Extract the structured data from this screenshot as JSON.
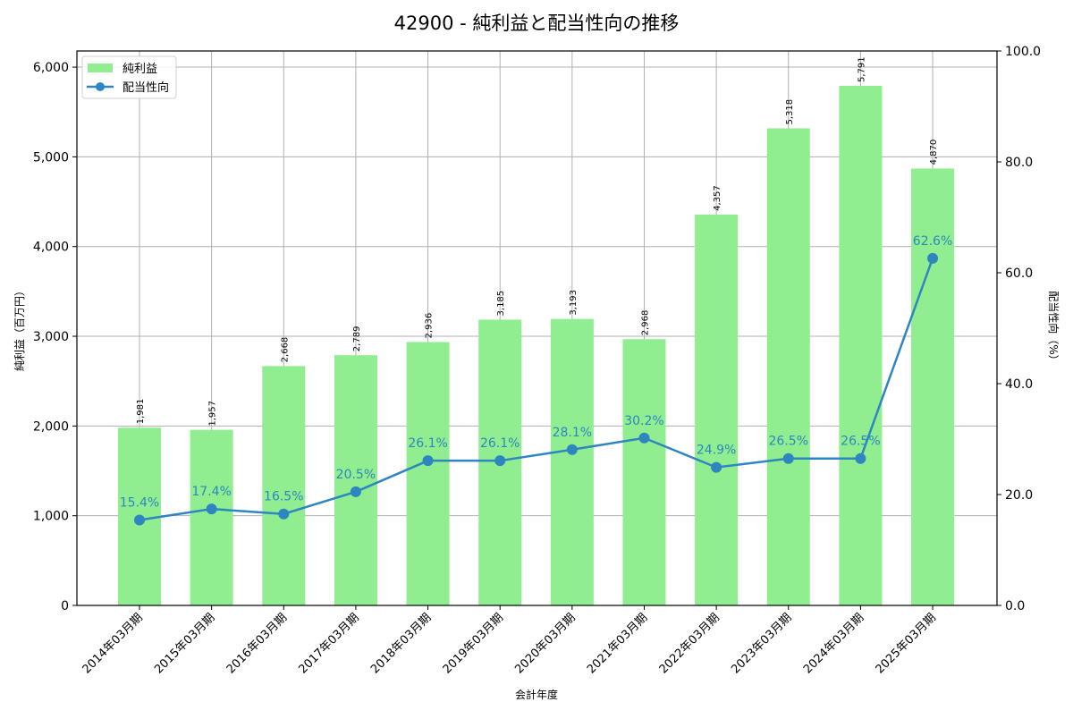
{
  "chart_data": {
    "type": "bar+line",
    "title": "42900 - 純利益と配当性向の推移",
    "xlabel": "会計年度",
    "ylabel_left": "純利益（百万円）",
    "ylabel_right": "配当性向（%）",
    "categories": [
      "2014年03月期",
      "2015年03月期",
      "2016年03月期",
      "2017年03月期",
      "2018年03月期",
      "2019年03月期",
      "2020年03月期",
      "2021年03月期",
      "2022年03月期",
      "2023年03月期",
      "2024年03月期",
      "2025年03月期"
    ],
    "series": [
      {
        "name": "純利益",
        "type": "bar",
        "axis": "left",
        "color": "#90ee90",
        "values": [
          1981,
          1957,
          2668,
          2789,
          2936,
          3185,
          3193,
          2968,
          4357,
          5318,
          5791,
          4870
        ],
        "labels": [
          "1,981",
          "1,957",
          "2,668",
          "2,789",
          "2,936",
          "3,185",
          "3,193",
          "2,968",
          "4,357",
          "5,318",
          "5,791",
          "4,870"
        ]
      },
      {
        "name": "配当性向",
        "type": "line",
        "axis": "right",
        "color": "#2e86c1",
        "values": [
          15.4,
          17.4,
          16.5,
          20.5,
          26.1,
          26.1,
          28.1,
          30.2,
          24.9,
          26.5,
          26.5,
          62.6
        ],
        "labels": [
          "15.4%",
          "17.4%",
          "16.5%",
          "20.5%",
          "26.1%",
          "26.1%",
          "28.1%",
          "30.2%",
          "24.9%",
          "26.5%",
          "26.5%",
          "62.6%"
        ]
      }
    ],
    "ylim_left": [
      0,
      6180
    ],
    "ylim_right": [
      0,
      100
    ],
    "yticks_left": [
      0,
      1000,
      2000,
      3000,
      4000,
      5000,
      6000
    ],
    "yticks_left_labels": [
      "0",
      "1,000",
      "2,000",
      "3,000",
      "4,000",
      "5,000",
      "6,000"
    ],
    "yticks_right": [
      0,
      20,
      40,
      60,
      80,
      100
    ],
    "yticks_right_labels": [
      "0.0",
      "20.0",
      "40.0",
      "60.0",
      "80.0",
      "100.0"
    ],
    "grid": true,
    "legend": {
      "position": "upper left",
      "entries": [
        "純利益",
        "配当性向"
      ]
    }
  }
}
